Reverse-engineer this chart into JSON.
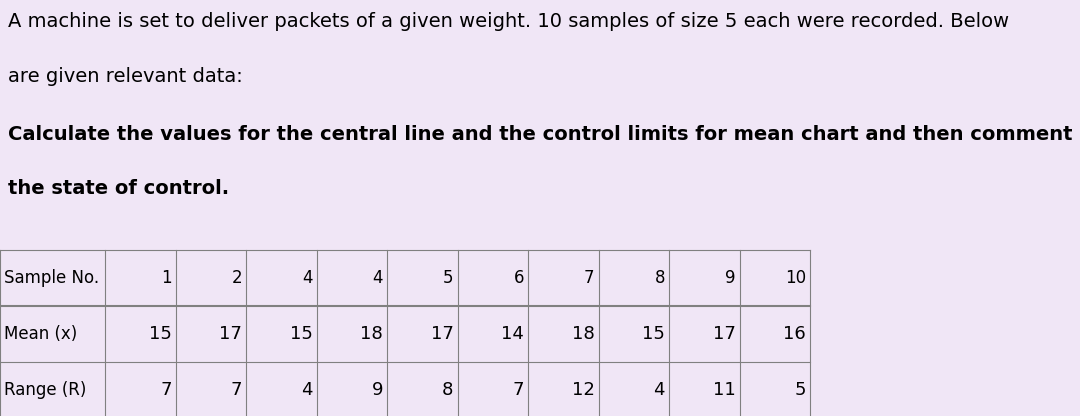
{
  "background_color": "#f0e6f6",
  "text_color": "#000000",
  "paragraph1": "A machine is set to deliver packets of a given weight. 10 samples of size 5 each were recorded. Below",
  "paragraph2": "are given relevant data:",
  "paragraph3": "Calculate the values for the central line and the control limits for mean chart and then comment on",
  "paragraph4": "the state of control.",
  "table": {
    "headers": [
      "Sample No.",
      "1",
      "2",
      "4",
      "4",
      "5",
      "6",
      "7",
      "8",
      "9",
      "10"
    ],
    "row1_label": "Mean (x)",
    "row1_values": [
      "15",
      "17",
      "15",
      "18",
      "17",
      "14",
      "18",
      "15",
      "17",
      "16"
    ],
    "row2_label": "Range (R)",
    "row2_values": [
      "7",
      "7",
      "4",
      "9",
      "8",
      "7",
      "12",
      "4",
      "11",
      "5"
    ]
  },
  "title_fontsize": 14,
  "table_fontsize": 13
}
